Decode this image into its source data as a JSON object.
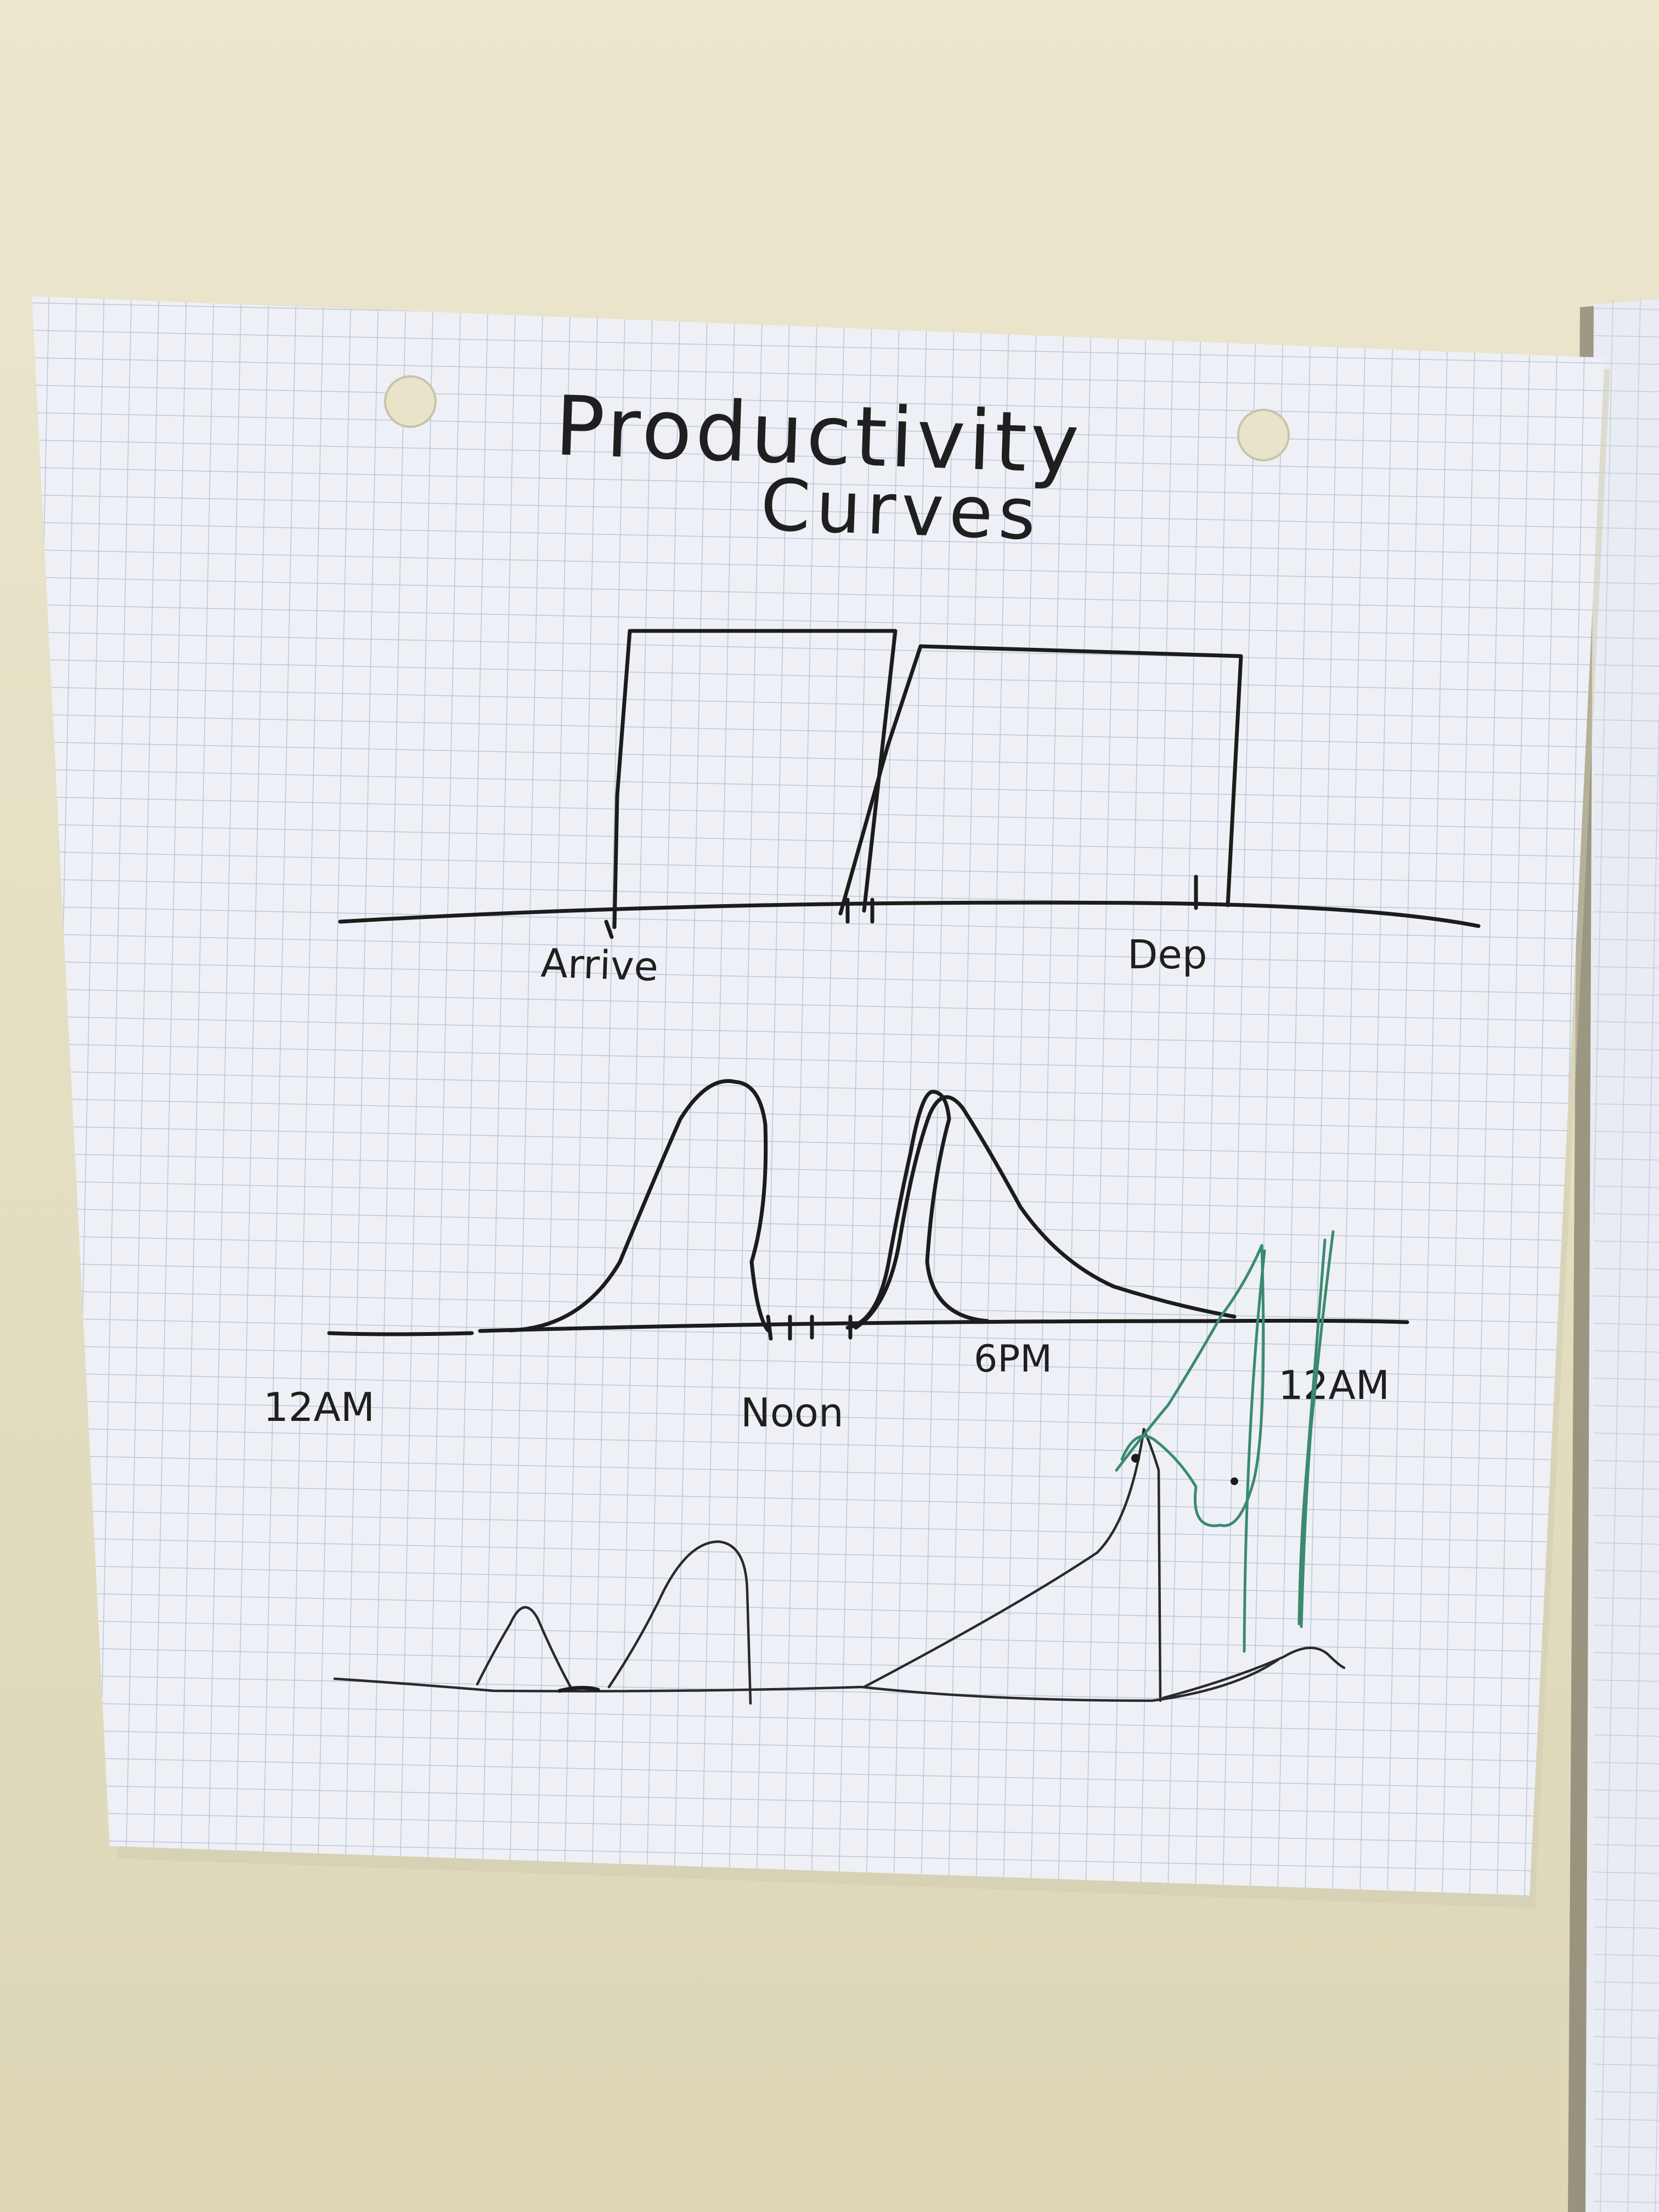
{
  "note": {
    "title_line1": "Productivity",
    "title_line2": "Curves",
    "chart1": {
      "label_start": "Arrive",
      "label_end": "Dep"
    },
    "chart2": {
      "label_0": "12AM",
      "label_1": "Noon",
      "label_2": "6PM",
      "label_3": "12AM"
    }
  },
  "colors": {
    "wall": "#e6e1c6",
    "paper": "#eef0f5",
    "grid": "#b9c6dd",
    "ink": "#1c1c1c",
    "green_ink": "#3a8a70"
  }
}
